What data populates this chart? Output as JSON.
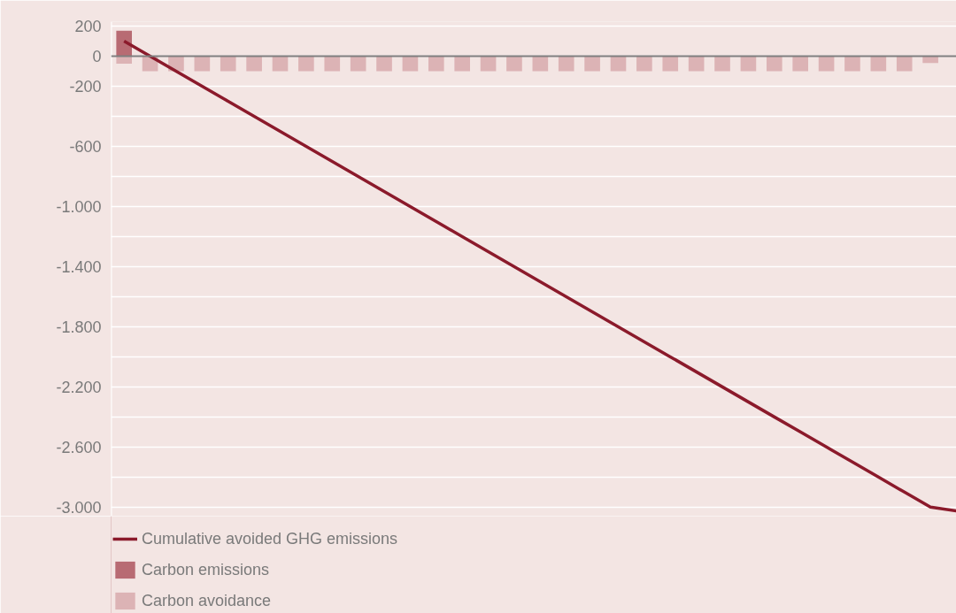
{
  "chart_data": {
    "type": "bar",
    "categories": [
      null,
      null,
      null,
      null,
      null,
      null,
      null,
      null,
      null,
      null,
      null,
      null,
      null,
      null,
      null,
      null,
      null,
      null,
      null,
      null,
      null,
      null,
      null,
      null,
      null,
      null,
      null,
      null,
      null,
      null,
      null,
      null,
      null
    ],
    "series": [
      {
        "name": "Cumulative avoided GHG emissions",
        "type": "line",
        "color": "#8b1a2b",
        "values": [
          100,
          0,
          -100,
          -200,
          -300,
          -400,
          -500,
          -600,
          -700,
          -800,
          -900,
          -1000,
          -1100,
          -1200,
          -1300,
          -1400,
          -1500,
          -1600,
          -1700,
          -1800,
          -1900,
          -2000,
          -2100,
          -2200,
          -2300,
          -2400,
          -2500,
          -2600,
          -2700,
          -2800,
          -2900,
          -3000,
          -3025
        ]
      },
      {
        "name": "Carbon emissions",
        "color": "#b86b73",
        "values": [
          170,
          null,
          null,
          null,
          null,
          null,
          null,
          null,
          null,
          null,
          null,
          null,
          null,
          null,
          null,
          null,
          null,
          null,
          null,
          null,
          null,
          null,
          null,
          null,
          null,
          null,
          null,
          null,
          null,
          null,
          null,
          null,
          null
        ]
      },
      {
        "name": "Carbon avoidance",
        "color": "#dcb3b5",
        "values": [
          -50,
          -100,
          -100,
          -100,
          -100,
          -100,
          -100,
          -100,
          -100,
          -100,
          -100,
          -100,
          -100,
          -100,
          -100,
          -100,
          -100,
          -100,
          -100,
          -100,
          -100,
          -100,
          -100,
          -100,
          -100,
          -100,
          -100,
          -100,
          -100,
          -100,
          -100,
          -45,
          null
        ]
      }
    ],
    "ylim": [
      -3060,
      230
    ],
    "yticks": [
      {
        "value": 200,
        "label": "200"
      },
      {
        "value": 0,
        "label": "0"
      },
      {
        "value": -200,
        "label": "-200"
      },
      {
        "value": -400,
        "label": null
      },
      {
        "value": -600,
        "label": "-600"
      },
      {
        "value": -800,
        "label": null
      },
      {
        "value": -1000,
        "label": "-1.000"
      },
      {
        "value": -1200,
        "label": null
      },
      {
        "value": -1400,
        "label": "-1.400"
      },
      {
        "value": -1600,
        "label": null
      },
      {
        "value": -1800,
        "label": "-1.800"
      },
      {
        "value": -2000,
        "label": null
      },
      {
        "value": -2200,
        "label": "-2.200"
      },
      {
        "value": -2400,
        "label": null
      },
      {
        "value": -2600,
        "label": "-2.600"
      },
      {
        "value": -2800,
        "label": null
      },
      {
        "value": -3000,
        "label": "-3.000"
      }
    ],
    "ref_lines": [
      {
        "axis": "y",
        "value": 0,
        "color": "#7f7f7f",
        "line_style": "solid"
      }
    ],
    "grid": "y",
    "legend": "bottom",
    "tick_labels": "y"
  }
}
